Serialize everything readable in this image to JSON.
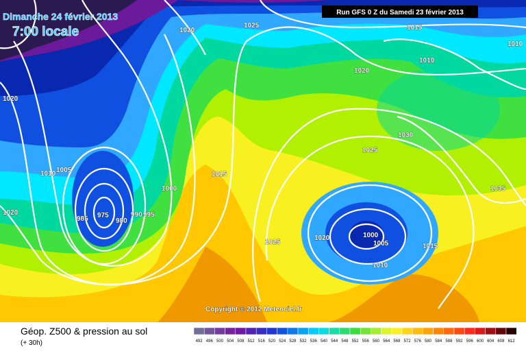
{
  "header": {
    "date": "Dimanche 24 février 2013",
    "time": "7:00 locale",
    "run": "Run GFS 0 Z du Samedi 23 février 2013"
  },
  "isobars": [
    1020,
    1025,
    1015,
    1010,
    1010,
    1020,
    1020,
    1010,
    1005,
    1000,
    1015,
    985,
    975,
    980,
    990,
    995,
    1020,
    1030,
    1025,
    1035,
    1025,
    1020,
    1000,
    1005,
    1015,
    1010
  ],
  "copyright": "Copyright © 2012 Meteociel.fr",
  "footer": {
    "title": "Géop. Z500 & pression au sol",
    "lead": "(+ 30h)"
  },
  "scale": [
    492,
    496,
    500,
    504,
    508,
    512,
    516,
    520,
    524,
    528,
    532,
    536,
    540,
    544,
    548,
    552,
    556,
    560,
    564,
    568,
    572,
    576,
    580,
    584,
    588,
    592,
    596,
    600,
    604,
    608,
    612
  ]
}
